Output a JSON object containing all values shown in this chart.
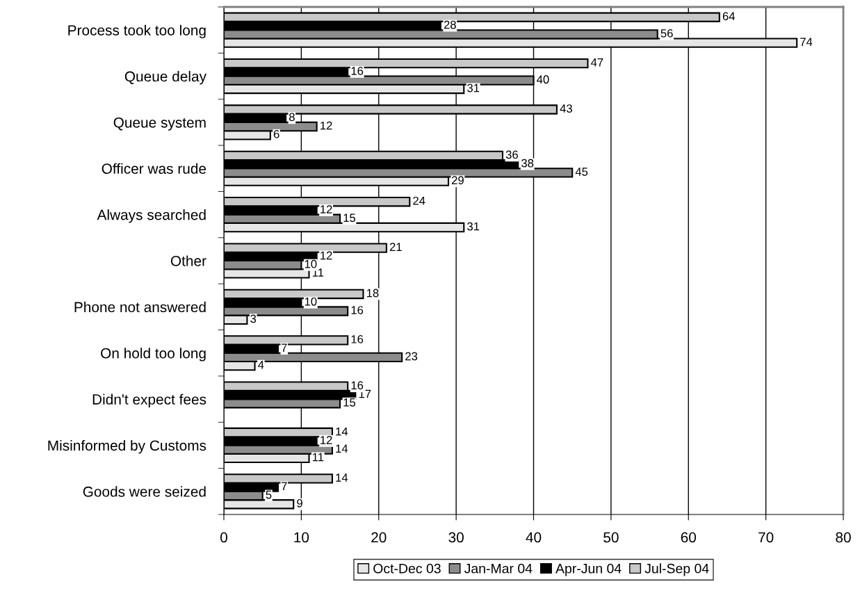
{
  "chart_data": {
    "type": "bar",
    "orientation": "horizontal",
    "categories": [
      "Process took too long",
      "Queue delay",
      "Queue system",
      "Officer was rude",
      "Always searched",
      "Other",
      "Phone not answered",
      "On hold too long",
      "Didn't expect fees",
      "Misinformed by Customs",
      "Goods were seized"
    ],
    "series": [
      {
        "name": "Oct-Dec 03",
        "color": "#e6e6e6",
        "values": [
          74,
          31,
          6,
          29,
          31,
          11,
          3,
          4,
          null,
          11,
          9
        ]
      },
      {
        "name": "Jan-Mar 04",
        "color": "#8c8c8c",
        "values": [
          56,
          40,
          12,
          45,
          15,
          10,
          16,
          23,
          15,
          14,
          5
        ]
      },
      {
        "name": "Apr-Jun 04",
        "color": "#000000",
        "values": [
          28,
          16,
          8,
          38,
          12,
          12,
          10,
          7,
          17,
          12,
          7
        ]
      },
      {
        "name": "Jul-Sep 04",
        "color": "#c8c8c8",
        "values": [
          64,
          47,
          43,
          36,
          24,
          21,
          18,
          16,
          16,
          14,
          14
        ]
      }
    ],
    "xlim": [
      0,
      80
    ],
    "xticks": [
      0,
      10,
      20,
      30,
      40,
      50,
      60,
      70,
      80
    ],
    "grid": "x",
    "legend": "bottom",
    "data_labels": true
  }
}
